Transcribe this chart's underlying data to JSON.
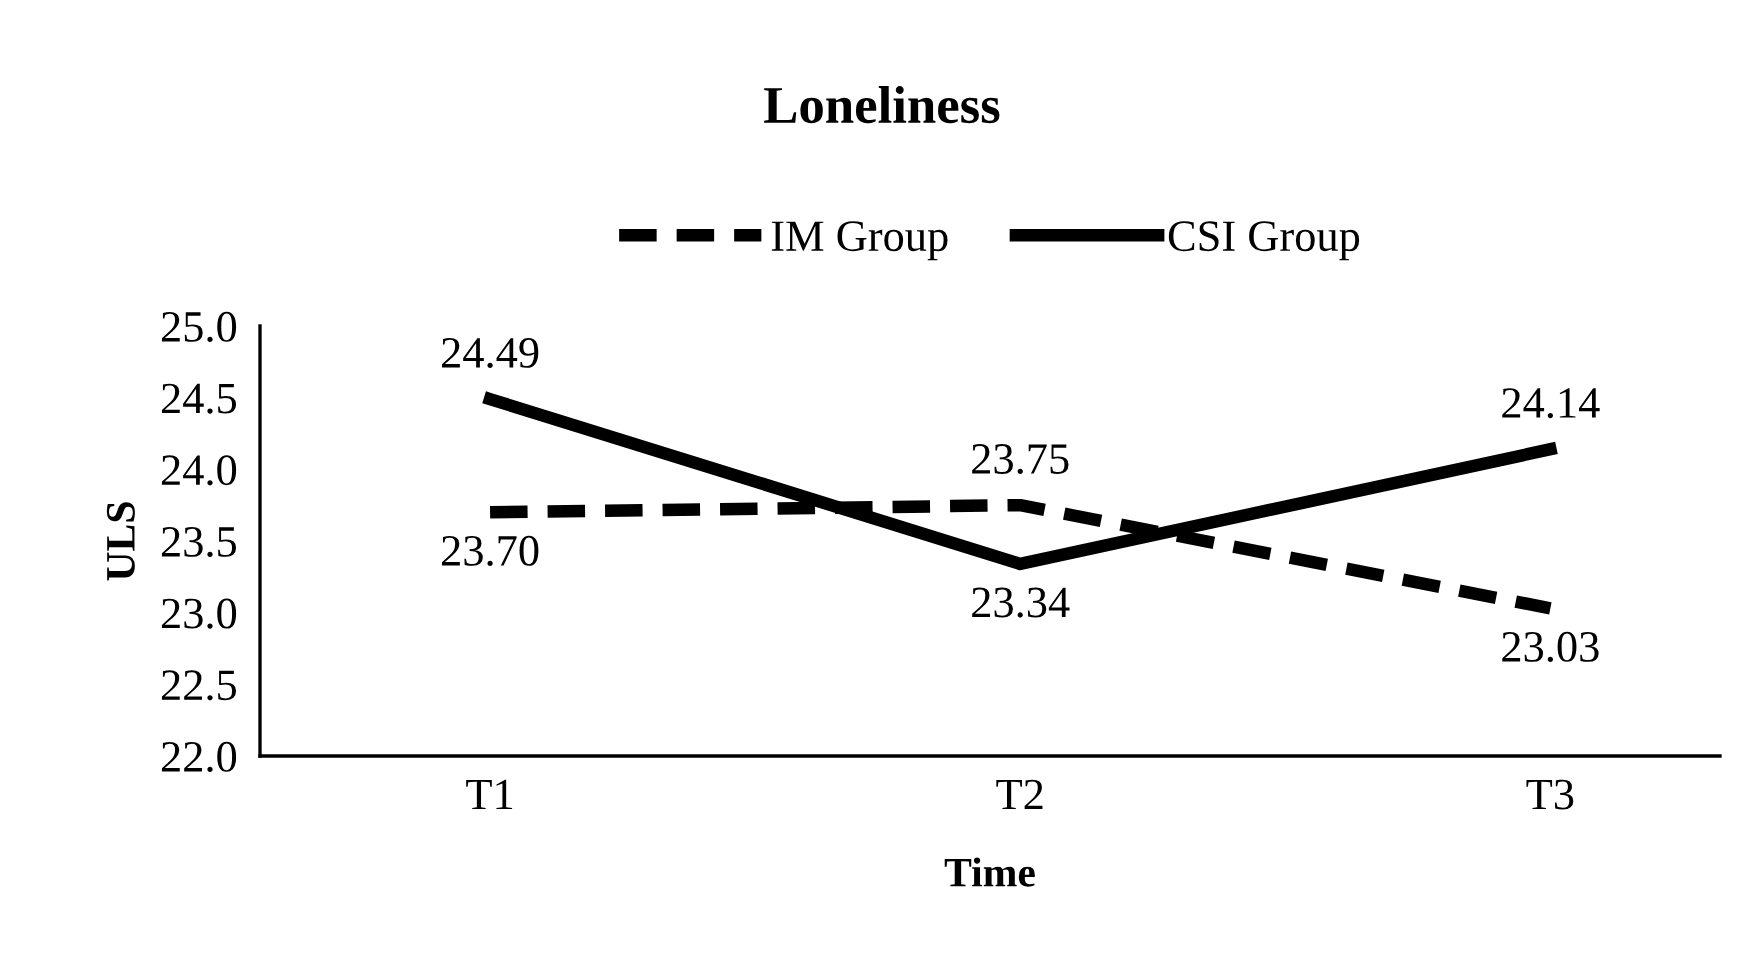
{
  "chart_data": {
    "type": "line",
    "title": "Loneliness",
    "xlabel": "Time",
    "ylabel": "ULS",
    "categories": [
      "T1",
      "T2",
      "T3"
    ],
    "series": [
      {
        "name": "IM Group",
        "color": "#000000",
        "line_style": "dashed",
        "values": [
          23.7,
          23.75,
          23.03
        ],
        "value_labels": [
          "23.70",
          "23.75",
          "23.03"
        ]
      },
      {
        "name": "CSI Group",
        "color": "#000000",
        "line_style": "solid",
        "values": [
          24.49,
          23.34,
          24.14
        ],
        "value_labels": [
          "24.49",
          "23.34",
          "24.14"
        ]
      }
    ],
    "ylim": [
      22.0,
      25.0
    ],
    "yticks": [
      {
        "value": 22.0,
        "label": "22.0"
      },
      {
        "value": 22.5,
        "label": "22.5"
      },
      {
        "value": 23.0,
        "label": "23.0"
      },
      {
        "value": 23.5,
        "label": "23.5"
      },
      {
        "value": 24.0,
        "label": "24.0"
      },
      {
        "value": 24.5,
        "label": "24.5"
      },
      {
        "value": 25.0,
        "label": "25.0"
      }
    ],
    "legend": "top",
    "grid": false,
    "marker": "none"
  }
}
